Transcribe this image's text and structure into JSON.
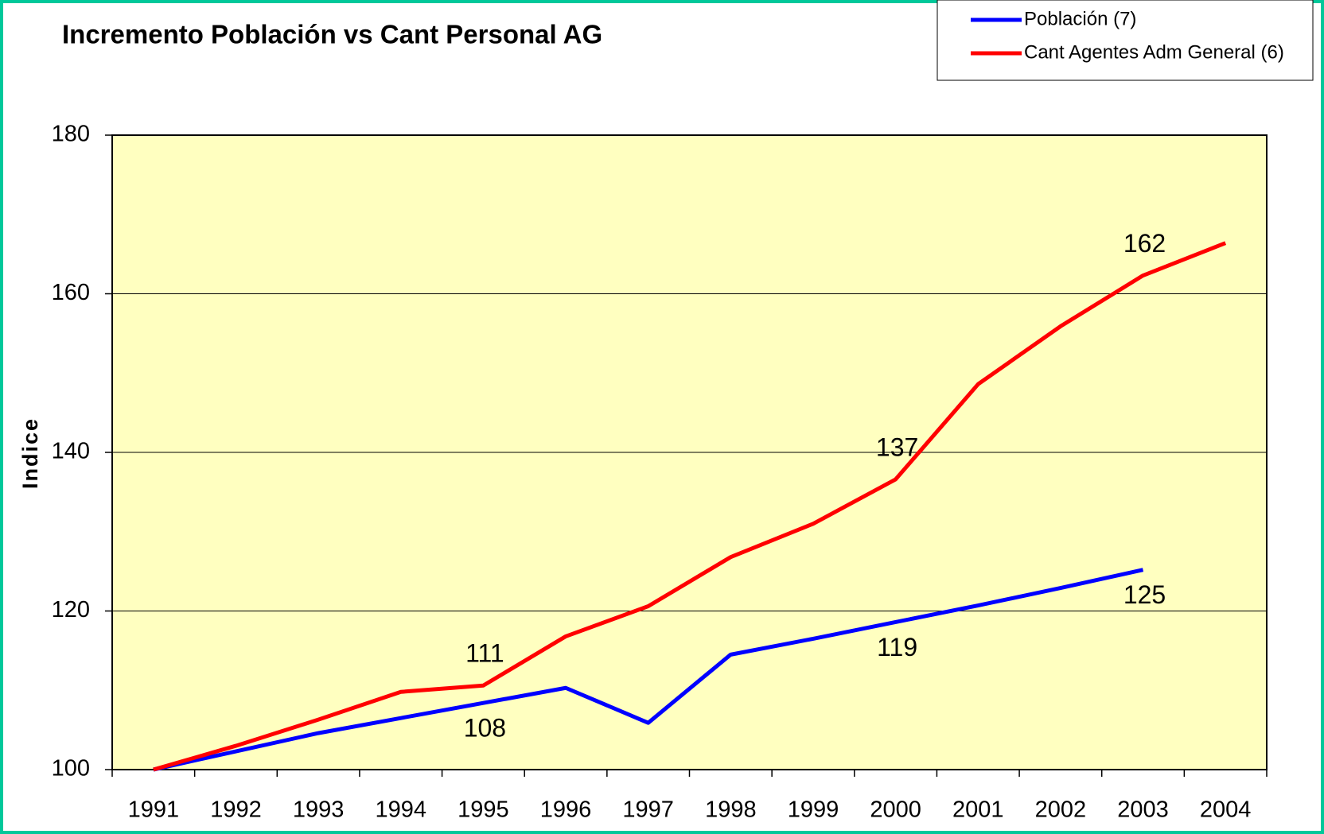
{
  "chart_data": {
    "type": "line",
    "title": "Incremento Población vs Cant Personal AG",
    "y_label": "Indice",
    "categories": [
      "1991",
      "1992",
      "1993",
      "1994",
      "1995",
      "1996",
      "1997",
      "1998",
      "1999",
      "2000",
      "2001",
      "2002",
      "2003",
      "2004"
    ],
    "series": [
      {
        "name": "Población (7)",
        "color": "#0000ff",
        "values": [
          100,
          102.3,
          104.6,
          106.5,
          108.4,
          110.3,
          105.9,
          114.5,
          116.5,
          118.6,
          120.7,
          122.9,
          125.2,
          null
        ],
        "value_labels": [
          null,
          null,
          null,
          null,
          "108",
          null,
          null,
          null,
          null,
          "119",
          null,
          null,
          "125",
          null
        ]
      },
      {
        "name": "Cant Agentes Adm General (6)",
        "color": "#ff0000",
        "values": [
          100,
          103,
          106.3,
          109.8,
          110.6,
          116.8,
          120.6,
          126.8,
          131,
          136.6,
          148.6,
          155.9,
          162.3,
          166.4
        ],
        "value_labels": [
          null,
          null,
          null,
          null,
          "111",
          null,
          null,
          null,
          null,
          "137",
          null,
          null,
          "162",
          null
        ]
      }
    ],
    "ylim": [
      100,
      180
    ],
    "yticks": [
      100,
      120,
      140,
      160,
      180
    ],
    "grid": true,
    "plot_background": "#ffffc0",
    "legend": "top-right"
  }
}
